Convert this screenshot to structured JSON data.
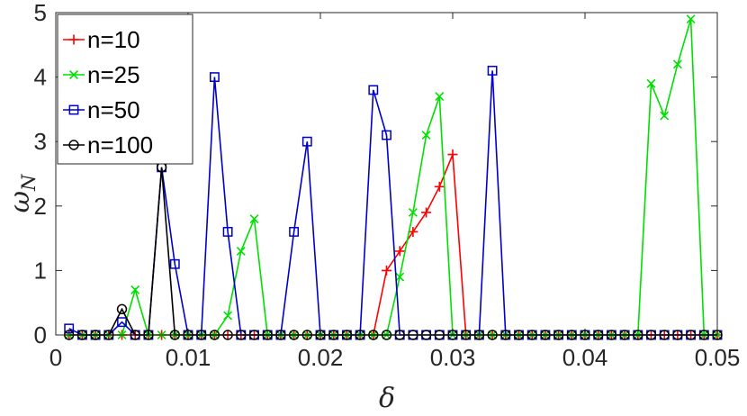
{
  "chart_data": {
    "type": "line",
    "xlabel": "δ",
    "ylabel": "ω",
    "ylabel_sub": "N",
    "xlim": [
      0,
      0.05
    ],
    "ylim": [
      0,
      5
    ],
    "xticks": [
      0,
      0.01,
      0.02,
      0.03,
      0.04,
      0.05
    ],
    "xtick_labels": [
      "0",
      "0.01",
      "0.02",
      "0.03",
      "0.04",
      "0.05"
    ],
    "yticks": [
      0,
      1,
      2,
      3,
      4,
      5
    ],
    "ytick_labels": [
      "0",
      "1",
      "2",
      "3",
      "4",
      "5"
    ],
    "grid": false,
    "legend_position": "top-left",
    "x": [
      0.001,
      0.002,
      0.003,
      0.004,
      0.005,
      0.006,
      0.007,
      0.008,
      0.009,
      0.01,
      0.011,
      0.012,
      0.013,
      0.014,
      0.015,
      0.016,
      0.017,
      0.018,
      0.019,
      0.02,
      0.021,
      0.022,
      0.023,
      0.024,
      0.025,
      0.026,
      0.027,
      0.028,
      0.029,
      0.03,
      0.031,
      0.032,
      0.033,
      0.034,
      0.035,
      0.036,
      0.037,
      0.038,
      0.039,
      0.04,
      0.041,
      0.042,
      0.043,
      0.044,
      0.045,
      0.046,
      0.047,
      0.048,
      0.049,
      0.05
    ],
    "series": [
      {
        "name": "n=10",
        "color": "#ff0000",
        "marker": "plus",
        "values": [
          0,
          0,
          0,
          0,
          0,
          0,
          0,
          0,
          0,
          0,
          0,
          0,
          0,
          0,
          0,
          0,
          0,
          0,
          0,
          0,
          0,
          0,
          0,
          0,
          1.0,
          1.3,
          1.6,
          1.9,
          2.3,
          2.8,
          0,
          0,
          0,
          0,
          0,
          0,
          0,
          0,
          0,
          0,
          0,
          0,
          0,
          0,
          0,
          0,
          0,
          0,
          0,
          0
        ]
      },
      {
        "name": "n=25",
        "color": "#00e000",
        "marker": "x",
        "values": [
          0,
          0,
          0,
          0,
          0,
          0.7,
          0,
          0,
          0,
          0,
          0,
          0,
          0.3,
          1.3,
          1.8,
          0,
          0,
          0,
          0,
          0,
          0,
          0,
          0,
          0,
          0,
          0.9,
          1.9,
          3.1,
          3.7,
          0,
          0,
          0,
          0,
          0,
          0,
          0,
          0,
          0,
          0,
          0,
          0,
          0,
          0,
          0,
          3.9,
          3.4,
          4.2,
          4.9,
          0,
          0
        ]
      },
      {
        "name": "n=50",
        "color": "#0000cc",
        "marker": "square",
        "values": [
          0.1,
          0,
          0,
          0,
          0.2,
          0,
          0,
          2.6,
          1.1,
          0,
          0,
          4.0,
          1.6,
          0,
          0,
          0,
          0,
          1.6,
          3.0,
          0,
          0,
          0,
          0,
          3.8,
          3.1,
          0,
          0,
          0,
          0,
          0,
          0,
          0,
          4.1,
          0,
          0,
          0,
          0,
          0,
          0,
          0,
          0,
          0,
          0,
          0,
          0,
          0,
          0,
          0,
          0,
          0
        ]
      },
      {
        "name": "n=100",
        "color": "#000000",
        "marker": "circle",
        "values": [
          0,
          0,
          0,
          0,
          0.4,
          0,
          0,
          2.6,
          0,
          0,
          0,
          0,
          0,
          0,
          0,
          0,
          0,
          0,
          0,
          0,
          0,
          0,
          0,
          0,
          0,
          0,
          0,
          0,
          0,
          0,
          0,
          0,
          0,
          0,
          0,
          0,
          0,
          0,
          0,
          0,
          0,
          0,
          0,
          0,
          0,
          0,
          0,
          0,
          0,
          0
        ]
      }
    ]
  }
}
